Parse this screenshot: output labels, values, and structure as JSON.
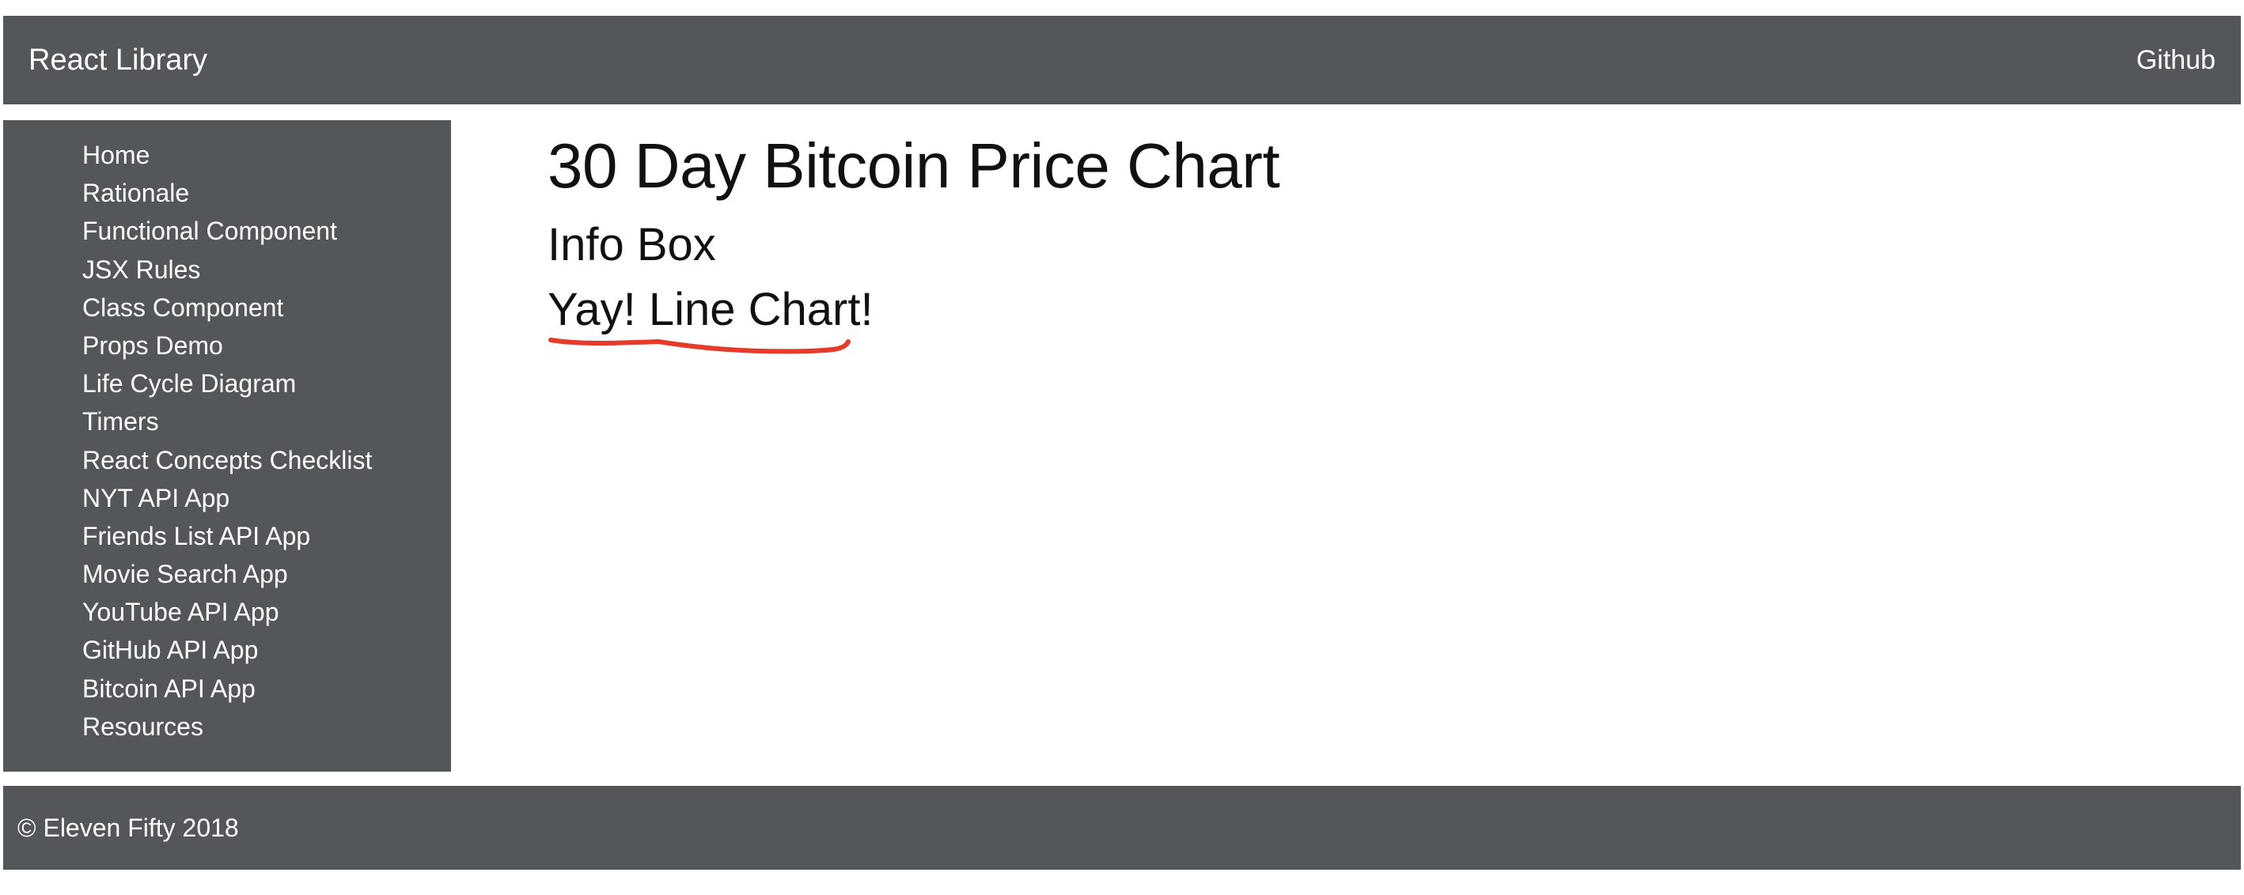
{
  "header": {
    "brand": "React Library",
    "github_link": "Github"
  },
  "sidebar": {
    "items": [
      {
        "label": "Home"
      },
      {
        "label": "Rationale"
      },
      {
        "label": "Functional Component"
      },
      {
        "label": "JSX Rules"
      },
      {
        "label": "Class Component"
      },
      {
        "label": "Props Demo"
      },
      {
        "label": "Life Cycle Diagram"
      },
      {
        "label": "Timers"
      },
      {
        "label": "React Concepts Checklist"
      },
      {
        "label": "NYT API App"
      },
      {
        "label": "Friends List API App"
      },
      {
        "label": "Movie Search App"
      },
      {
        "label": "YouTube API App"
      },
      {
        "label": "GitHub API App"
      },
      {
        "label": "Bitcoin API App"
      },
      {
        "label": "Resources"
      }
    ]
  },
  "main": {
    "title": "30 Day Bitcoin Price Chart",
    "info_box": "Info Box",
    "line_chart_note": "Yay! Line Chart!"
  },
  "footer": {
    "copyright": "© Eleven Fifty 2018"
  },
  "colors": {
    "bar_background": "#54575a",
    "bar_text": "#ffffff",
    "annotation_underline": "#e63a2a"
  }
}
